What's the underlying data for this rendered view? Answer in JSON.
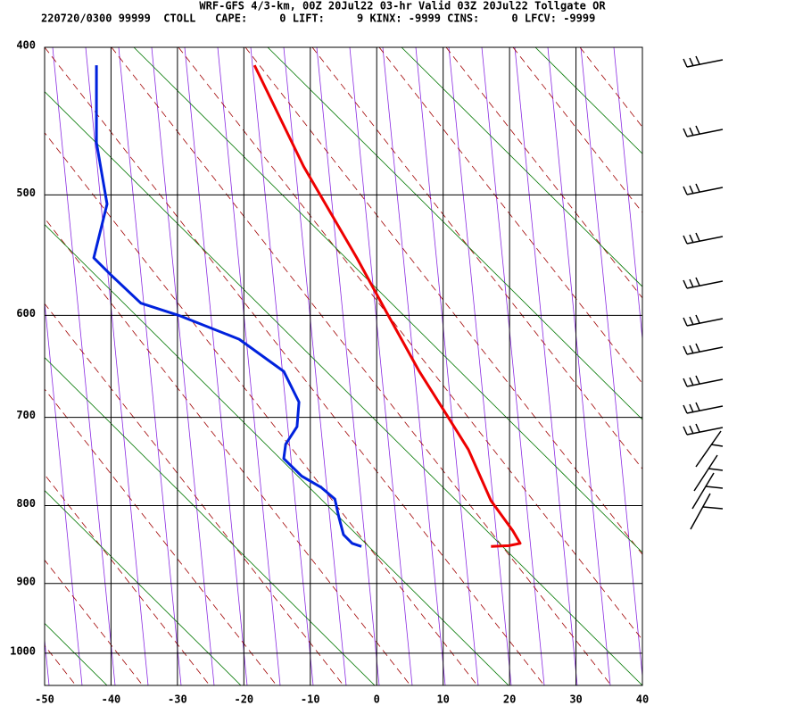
{
  "chart_data": {
    "type": "line",
    "title": "WRF-GFS 4/3-km, 00Z 20Jul22 03-hr Valid 03Z 20Jul22 Tollgate OR",
    "subtitle": "220720/0300 99999  CTOLL   CAPE:     0 LIFT:     9 KINX: -9999 CINS:     0 LFCV: -9999",
    "xlim": [
      -50,
      40
    ],
    "xticks": [
      -50,
      -40,
      -30,
      -20,
      -10,
      0,
      10,
      20,
      30,
      40
    ],
    "ylim": [
      400,
      1050
    ],
    "yticks": [
      400,
      500,
      600,
      700,
      800,
      900,
      1000
    ],
    "y_scale": "log",
    "y_inverted": true,
    "grid": true,
    "series": [
      {
        "color": "#ee0000",
        "x": [
          -18.4,
          -11.0,
          -3.0,
          1.0,
          6.4,
          10.5,
          13.8,
          17.2,
          20.5,
          21.6,
          19.9,
          17.2
        ],
        "values": [
          411,
          479,
          550,
          592,
          653,
          697,
          735,
          794,
          831,
          847,
          850,
          851
        ]
      },
      {
        "color": "#0022dd",
        "x": [
          -42.2,
          -42.2,
          -40.6,
          -42.6,
          -39.9,
          -35.5,
          -29.8,
          -20.7,
          -14.0,
          -11.7,
          -12.0,
          -13.7,
          -14.0,
          -11.3,
          -8.4,
          -6.3,
          -5.7,
          -5.0,
          -3.7,
          -2.3
        ],
        "values": [
          411,
          462,
          507,
          550,
          565,
          589,
          600,
          622,
          653,
          684,
          710,
          729,
          745,
          765,
          778,
          792,
          814,
          836,
          847,
          851
        ]
      }
    ]
  }
}
